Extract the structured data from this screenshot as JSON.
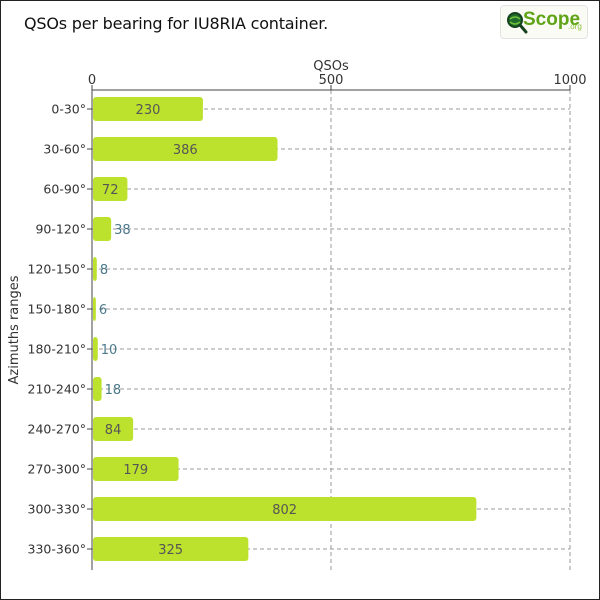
{
  "title": "QSOs per bearing for IU8RIA container.",
  "logo": {
    "name": "Scope",
    "suffix": ".org",
    "icon": "qscope-logo-icon"
  },
  "colors": {
    "bar": "#bde22e",
    "grid": "#999999",
    "axis": "#444444",
    "outside_label": "#4c7a8a"
  },
  "chart_data": {
    "type": "bar",
    "orientation": "horizontal",
    "title": "QSOs per bearing for IU8RIA container.",
    "xlabel": "QSOs",
    "ylabel": "Azimuths ranges",
    "xlim": [
      0,
      1000
    ],
    "xticks": [
      "0",
      "500",
      "1000"
    ],
    "x_axis_position": "top",
    "grid": true,
    "categories": [
      "0-30°",
      "30-60°",
      "60-90°",
      "90-120°",
      "120-150°",
      "150-180°",
      "180-210°",
      "210-240°",
      "240-270°",
      "270-300°",
      "300-330°",
      "330-360°"
    ],
    "values": [
      230,
      386,
      72,
      38,
      8,
      6,
      10,
      18,
      84,
      179,
      802,
      325
    ]
  }
}
